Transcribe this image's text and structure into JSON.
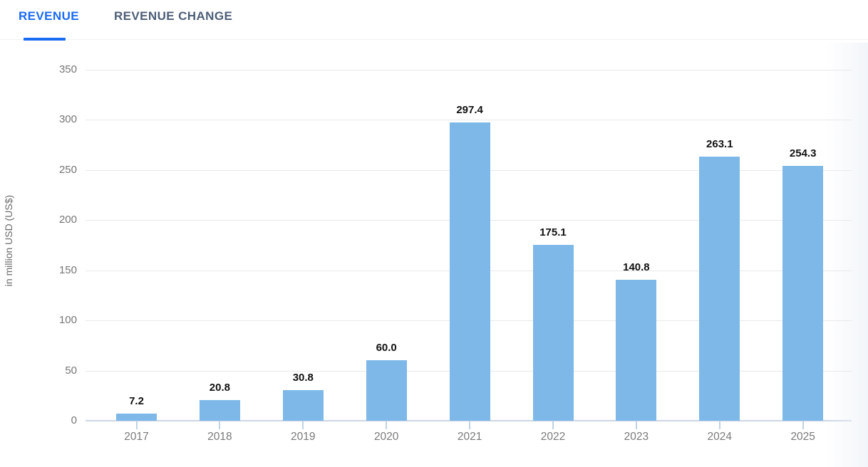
{
  "tabs": [
    {
      "label": "REVENUE",
      "active": true
    },
    {
      "label": "REVENUE CHANGE",
      "active": false
    }
  ],
  "chart_data": {
    "type": "bar",
    "categories": [
      "2017",
      "2018",
      "2019",
      "2020",
      "2021",
      "2022",
      "2023",
      "2024",
      "2025"
    ],
    "values": [
      7.2,
      20.8,
      30.8,
      60.0,
      297.4,
      175.1,
      140.8,
      263.1,
      254.3
    ],
    "value_labels": [
      "7.2",
      "20.8",
      "30.8",
      "60.0",
      "297.4",
      "175.1",
      "140.8",
      "263.1",
      "254.3"
    ],
    "title": "",
    "xlabel": "",
    "ylabel": "in million USD (US$)",
    "ylim": [
      0,
      350
    ],
    "y_ticks": [
      0,
      50,
      100,
      150,
      200,
      250,
      300,
      350
    ],
    "grid": true,
    "legend": false,
    "bar_color": "#7db8e8"
  },
  "colors": {
    "active_tab": "#1a6bf3",
    "inactive_tab": "#4d5e77",
    "bar": "#7db8e8",
    "gridline": "#e9e9e9",
    "axis_line": "#cdd6e3",
    "value_label": "#111111",
    "tick_label": "#757575"
  }
}
